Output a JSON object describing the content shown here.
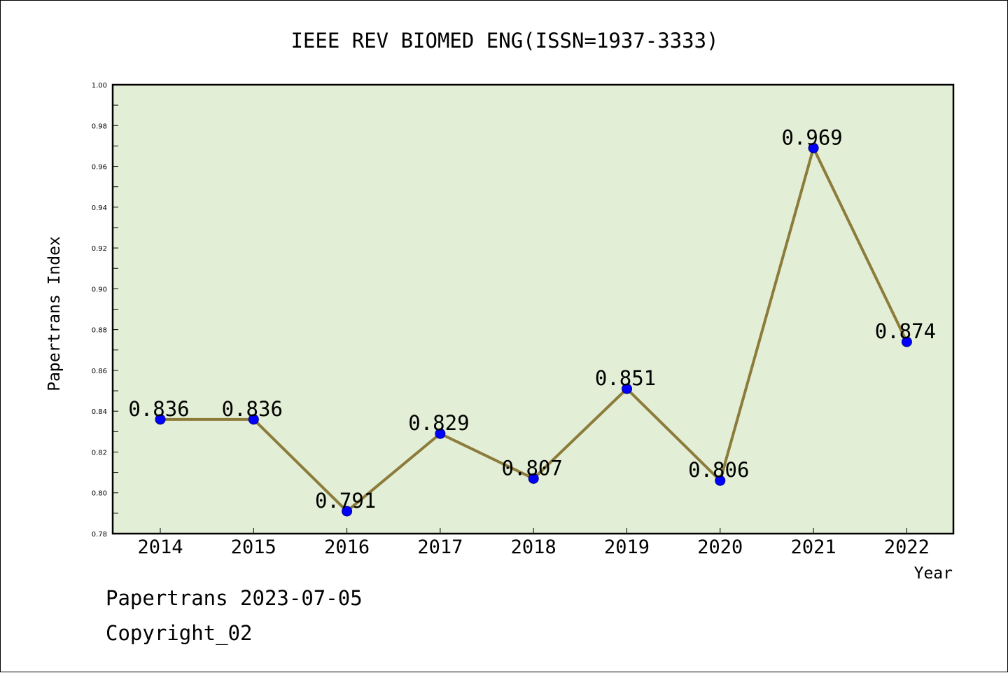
{
  "chart_data": {
    "type": "line",
    "title": "IEEE REV BIOMED ENG(ISSN=1937-3333)",
    "xlabel": "Year",
    "ylabel": "Papertrans Index",
    "categories": [
      "2014",
      "2015",
      "2016",
      "2017",
      "2018",
      "2019",
      "2020",
      "2021",
      "2022"
    ],
    "values": [
      0.836,
      0.836,
      0.791,
      0.829,
      0.807,
      0.851,
      0.806,
      0.969,
      0.874
    ],
    "data_labels": [
      "0.836",
      "0.836",
      "0.791",
      "0.829",
      "0.807",
      "0.851",
      "0.806",
      "0.969",
      "0.874"
    ],
    "ylim": [
      0.78,
      1.0
    ],
    "yticks": [
      "0.78",
      "0.80",
      "0.82",
      "0.84",
      "0.86",
      "0.88",
      "0.90",
      "0.92",
      "0.94",
      "0.96",
      "0.98",
      "1.00"
    ],
    "grid": false,
    "colors": {
      "plot_background": "#e2efd6",
      "line": "#8c7b3a",
      "marker": "#0000ff",
      "axis": "#000000"
    }
  },
  "footer": {
    "date_text": "Papertrans 2023-07-05",
    "copyright_text": "Copyright_02"
  }
}
